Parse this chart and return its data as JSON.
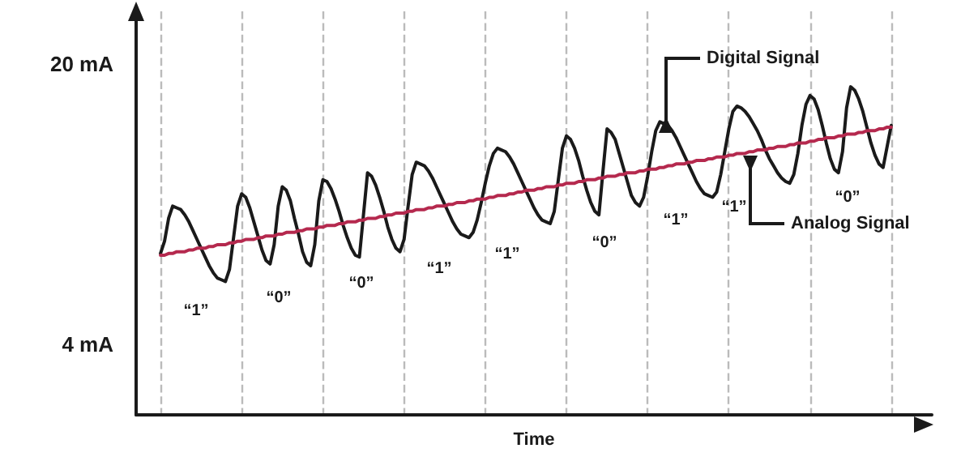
{
  "chart_data": {
    "type": "line",
    "xlabel": "Time",
    "ylim": [
      0,
      23
    ],
    "yticks": [
      {
        "value": 4,
        "label": "4 mA"
      },
      {
        "value": 20,
        "label": "20 mA"
      }
    ],
    "tick_labels": "y",
    "grid": "x",
    "categories": [
      null,
      null,
      null,
      null,
      null,
      null,
      null,
      null,
      null,
      null,
      null,
      null,
      null,
      null,
      null,
      null,
      null,
      null,
      null,
      null,
      null,
      null,
      null,
      null,
      null,
      null,
      null,
      null,
      null,
      null,
      null,
      null,
      null,
      null,
      null,
      null,
      null,
      null,
      null,
      null,
      null,
      null,
      null,
      null,
      null,
      null,
      null,
      null,
      null,
      null,
      null,
      null,
      null,
      null,
      null,
      null,
      null,
      null,
      null,
      null,
      null,
      null,
      null,
      null,
      null,
      null,
      null,
      null,
      null,
      null,
      null,
      null,
      null,
      null,
      null,
      null,
      null,
      null,
      null,
      null,
      null,
      null,
      null,
      null,
      null,
      null,
      null,
      null,
      null,
      null,
      null,
      null,
      null,
      null,
      null,
      null,
      null,
      null,
      null,
      null,
      null,
      null,
      null,
      null,
      null,
      null,
      null,
      null,
      null,
      null,
      null,
      null,
      null,
      null,
      null,
      null,
      null,
      null,
      null,
      null,
      null,
      null,
      null,
      null,
      null,
      null,
      null,
      null,
      null,
      null,
      null,
      null,
      null,
      null,
      null,
      null,
      null,
      null,
      null,
      null,
      null,
      null,
      null,
      null,
      null,
      null,
      null,
      null,
      null,
      null,
      null,
      null,
      null,
      null,
      null,
      null,
      null,
      null,
      null,
      null,
      null,
      null,
      null,
      null,
      null,
      null,
      null,
      null,
      null,
      null,
      null,
      null,
      null,
      null,
      null,
      null,
      null,
      null,
      null,
      null,
      null,
      null,
      null,
      null,
      null,
      null,
      null,
      null,
      null,
      null,
      null,
      null,
      null,
      null,
      null,
      null,
      null
    ],
    "series": [
      {
        "color": "#1a1a1a",
        "values": [
          null,
          null,
          null,
          null,
          null,
          null,
          9.2,
          9.9,
          11.2,
          11.9,
          11.8,
          11.7,
          11.4,
          11.0,
          10.5,
          10.0,
          9.5,
          9.0,
          8.5,
          8.1,
          7.8,
          7.7,
          7.6,
          8.3,
          10.1,
          11.9,
          12.6,
          12.4,
          11.8,
          11.0,
          10.2,
          9.4,
          8.8,
          8.6,
          9.7,
          11.9,
          13.0,
          12.8,
          12.2,
          11.2,
          10.3,
          9.3,
          8.7,
          8.5,
          9.7,
          12.2,
          13.4,
          13.3,
          12.9,
          12.3,
          11.6,
          10.8,
          10.1,
          9.5,
          9.1,
          9.0,
          11.4,
          13.8,
          13.6,
          13.1,
          12.4,
          11.6,
          10.7,
          10.0,
          9.5,
          9.3,
          10.0,
          11.9,
          13.7,
          14.4,
          14.3,
          14.2,
          13.9,
          13.5,
          13.0,
          12.5,
          12.0,
          11.5,
          11.0,
          10.6,
          10.3,
          10.2,
          10.1,
          10.4,
          11.1,
          12.1,
          13.2,
          14.2,
          14.9,
          15.2,
          15.1,
          15.0,
          14.7,
          14.3,
          13.8,
          13.3,
          12.8,
          12.3,
          11.8,
          11.4,
          11.1,
          11.0,
          10.9,
          11.6,
          13.4,
          15.2,
          15.9,
          15.7,
          15.2,
          14.5,
          13.6,
          12.8,
          12.1,
          11.6,
          11.4,
          13.9,
          16.3,
          16.1,
          15.7,
          14.9,
          14.1,
          13.3,
          12.5,
          12.1,
          11.9,
          12.4,
          13.6,
          15.0,
          16.2,
          16.7,
          16.6,
          16.5,
          16.2,
          15.8,
          15.3,
          14.8,
          14.3,
          13.8,
          13.3,
          12.9,
          12.6,
          12.5,
          12.4,
          12.7,
          13.7,
          15.0,
          16.3,
          17.3,
          17.6,
          17.5,
          17.3,
          17.0,
          16.6,
          16.2,
          15.7,
          15.1,
          14.6,
          14.2,
          13.8,
          13.5,
          13.3,
          13.2,
          13.7,
          14.9,
          16.5,
          17.7,
          18.2,
          18.0,
          17.4,
          16.5,
          15.5,
          14.6,
          14.0,
          13.8,
          15.0,
          17.5,
          18.7,
          18.5,
          18.0,
          17.3,
          16.4,
          15.5,
          14.8,
          14.3,
          14.1,
          15.3,
          16.5,
          null,
          null,
          null,
          null,
          null,
          null,
          null,
          null,
          null,
          null
        ]
      },
      {
        "color": "#b5294e",
        "values": [
          null,
          null,
          null,
          null,
          null,
          null,
          9.1,
          9.1,
          9.2,
          9.2,
          9.3,
          9.3,
          9.3,
          9.4,
          9.4,
          9.5,
          9.5,
          9.5,
          9.6,
          9.6,
          9.7,
          9.7,
          9.7,
          9.8,
          9.8,
          9.9,
          9.9,
          10.0,
          10.0,
          10.0,
          10.1,
          10.1,
          10.2,
          10.2,
          10.2,
          10.3,
          10.3,
          10.4,
          10.4,
          10.4,
          10.5,
          10.5,
          10.6,
          10.6,
          10.6,
          10.7,
          10.7,
          10.8,
          10.8,
          10.8,
          10.9,
          10.9,
          11.0,
          11.0,
          11.0,
          11.1,
          11.1,
          11.2,
          11.2,
          11.2,
          11.3,
          11.3,
          11.4,
          11.4,
          11.5,
          11.5,
          11.5,
          11.6,
          11.6,
          11.7,
          11.7,
          11.7,
          11.8,
          11.8,
          11.9,
          11.9,
          11.9,
          12.0,
          12.0,
          12.1,
          12.1,
          12.1,
          12.2,
          12.2,
          12.3,
          12.3,
          12.3,
          12.4,
          12.4,
          12.5,
          12.5,
          12.5,
          12.6,
          12.6,
          12.7,
          12.7,
          12.8,
          12.8,
          12.8,
          12.9,
          12.9,
          13.0,
          13.0,
          13.0,
          13.1,
          13.1,
          13.2,
          13.2,
          13.2,
          13.3,
          13.3,
          13.4,
          13.4,
          13.4,
          13.5,
          13.5,
          13.6,
          13.6,
          13.6,
          13.7,
          13.7,
          13.8,
          13.8,
          13.8,
          13.9,
          13.9,
          14.0,
          14.0,
          14.0,
          14.1,
          14.1,
          14.2,
          14.2,
          14.3,
          14.3,
          14.3,
          14.4,
          14.4,
          14.5,
          14.5,
          14.5,
          14.6,
          14.6,
          14.7,
          14.7,
          14.7,
          14.8,
          14.8,
          14.9,
          14.9,
          14.9,
          15.0,
          15.0,
          15.1,
          15.1,
          15.1,
          15.2,
          15.2,
          15.3,
          15.3,
          15.3,
          15.4,
          15.4,
          15.5,
          15.5,
          15.5,
          15.6,
          15.6,
          15.7,
          15.7,
          15.8,
          15.8,
          15.8,
          15.9,
          15.9,
          16.0,
          16.0,
          16.0,
          16.1,
          16.1,
          16.2,
          16.2,
          16.2,
          16.3,
          16.3,
          16.4,
          16.4,
          null,
          null,
          null,
          null,
          null,
          null,
          null,
          null,
          null,
          null
        ]
      }
    ],
    "annotations": [
      "“1”",
      "“0”",
      "“0”",
      "“1”",
      "“1”",
      "“0”",
      "“1”",
      "“1”",
      "“0”",
      "Digital Signal",
      "Analog Signal"
    ]
  }
}
